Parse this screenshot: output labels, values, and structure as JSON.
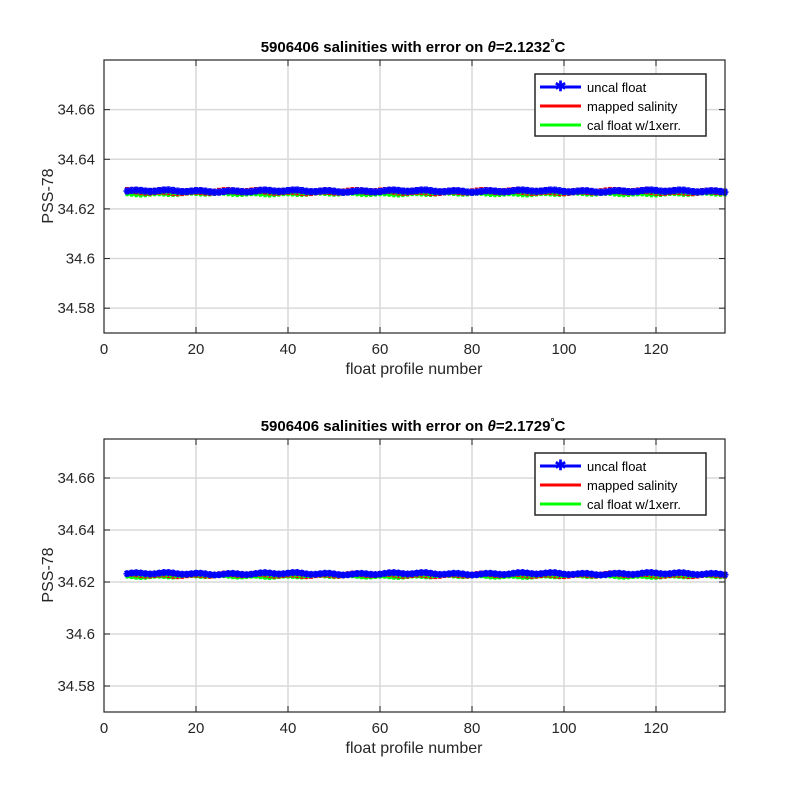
{
  "chart_data": [
    {
      "type": "line",
      "title_prefix": "5906406 salinities with error on ",
      "title_theta": "θ",
      "title_value": "=2.1232",
      "title_degree": "°",
      "title_unit": "C",
      "xlabel": "float profile number",
      "ylabel": "PSS-78",
      "xlim": [
        0,
        135
      ],
      "ylim": [
        34.57,
        34.68
      ],
      "xticks": [
        0,
        20,
        40,
        60,
        80,
        100,
        120
      ],
      "yticks": [
        34.58,
        34.6,
        34.62,
        34.64,
        34.66
      ],
      "ytick_labels": [
        "34.58",
        "34.6",
        "34.62",
        "34.64",
        "34.66"
      ],
      "grid": true,
      "legend_position": "top-right",
      "x": {
        "start": 5,
        "end": 135
      },
      "series": [
        {
          "name": "uncal float",
          "color": "#0000ff",
          "marker": "asterisk",
          "mean": 34.6272,
          "amplitude": 0.0005,
          "error": 0.0012
        },
        {
          "name": "mapped salinity",
          "color": "#ff0000",
          "mean": 34.627,
          "amplitude": 0.0005,
          "error": 0.0012
        },
        {
          "name": "cal float w/1xerr.",
          "color": "#00ff00",
          "mean": 34.6262,
          "amplitude": 0.0004,
          "error": 0.0012
        }
      ]
    },
    {
      "type": "line",
      "title_prefix": "5906406 salinities with error on ",
      "title_theta": "θ",
      "title_value": "=2.1729",
      "title_degree": "°",
      "title_unit": "C",
      "xlabel": "float profile number",
      "ylabel": "PSS-78",
      "xlim": [
        0,
        135
      ],
      "ylim": [
        34.57,
        34.675
      ],
      "xticks": [
        0,
        20,
        40,
        60,
        80,
        100,
        120
      ],
      "yticks": [
        34.58,
        34.6,
        34.62,
        34.64,
        34.66
      ],
      "ytick_labels": [
        "34.58",
        "34.6",
        "34.62",
        "34.64",
        "34.66"
      ],
      "grid": true,
      "legend_position": "top-right",
      "x": {
        "start": 5,
        "end": 135
      },
      "series": [
        {
          "name": "uncal float",
          "color": "#0000ff",
          "marker": "asterisk",
          "mean": 34.6232,
          "amplitude": 0.0005,
          "error": 0.001
        },
        {
          "name": "mapped salinity",
          "color": "#ff0000",
          "mean": 34.6228,
          "amplitude": 0.0005,
          "error": 0.001
        },
        {
          "name": "cal float w/1xerr.",
          "color": "#00ff00",
          "mean": 34.6222,
          "amplitude": 0.0004,
          "error": 0.001
        }
      ]
    }
  ]
}
